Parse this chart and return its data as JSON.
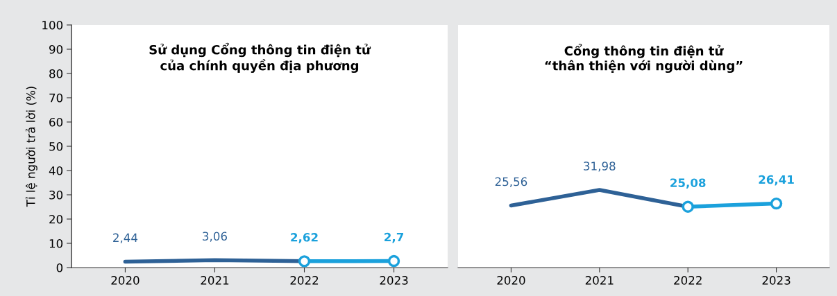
{
  "chart_data": [
    {
      "type": "line",
      "title": "Sử dụng Cổng thông tin điện tử\ncủa chính quyền địa phương",
      "ylabel": "Tỉ lệ người trả lời (%)",
      "categories": [
        "2020",
        "2021",
        "2022",
        "2023"
      ],
      "ylim": [
        0,
        100
      ],
      "yticks": [
        0,
        10,
        20,
        30,
        40,
        50,
        60,
        70,
        80,
        90,
        100
      ],
      "grid": false,
      "legend": false,
      "series": [
        {
          "color": "#2e6196",
          "values": [
            2.44,
            3.06,
            2.62,
            null
          ],
          "marker": "none",
          "value_labels": [
            "2,44",
            "3,06",
            null,
            null
          ]
        },
        {
          "color": "#1ba1dc",
          "values": [
            null,
            null,
            2.62,
            2.7
          ],
          "marker": "circle",
          "value_labels": [
            null,
            null,
            "2,62",
            "2,7"
          ]
        }
      ]
    },
    {
      "type": "line",
      "title": "Cổng thông tin điện tử\n“thân thiện với người dùng”",
      "categories": [
        "2020",
        "2021",
        "2022",
        "2023"
      ],
      "ylim": [
        0,
        100
      ],
      "yticks": [
        0,
        10,
        20,
        30,
        40,
        50,
        60,
        70,
        80,
        90,
        100
      ],
      "tick_labels": "x",
      "grid": false,
      "legend": false,
      "series": [
        {
          "color": "#2e6196",
          "values": [
            25.56,
            31.98,
            25.08,
            null
          ],
          "marker": "none",
          "value_labels": [
            "25,56",
            "31,98",
            null,
            null
          ]
        },
        {
          "color": "#1ba1dc",
          "values": [
            null,
            null,
            25.08,
            26.41
          ],
          "marker": "circle",
          "value_labels": [
            null,
            null,
            "25,08",
            "26,41"
          ]
        }
      ]
    }
  ]
}
